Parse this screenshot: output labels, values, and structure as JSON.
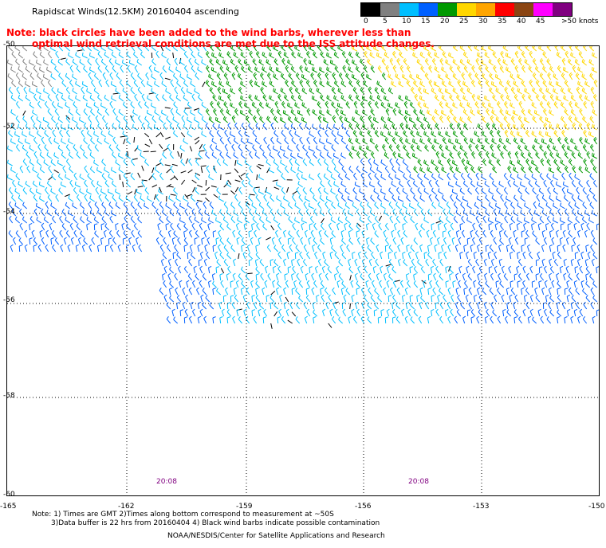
{
  "title": "Rapidscat Winds(12.5KM) 20160404 ascending",
  "note": {
    "line1": "Note: black circles have been added to the wind barbs, wherever less than",
    "line2": "optimal wind retrieval conditions are met due to the ISS attitude changes."
  },
  "colorbar": {
    "labels": [
      "0",
      "5",
      "10",
      "15",
      "20",
      "25",
      "30",
      "35",
      "40",
      "45",
      ">50 knots"
    ],
    "colors": [
      "#000000",
      "#808080",
      "#00bfff",
      "#0060ff",
      "#009900",
      "#ffd700",
      "#ffa500",
      "#ff0000",
      "#8b4513",
      "#ff00ff",
      "#800080"
    ]
  },
  "map": {
    "lat_labels": [
      "-50",
      "-52",
      "-54",
      "-56",
      "-58",
      "-60"
    ],
    "lon_labels": [
      "-165",
      "-162",
      "-159",
      "-156",
      "-153",
      "-150"
    ],
    "time_labels": [
      "20:08",
      "20:08"
    ]
  },
  "footer": {
    "line1": "Note: 1) Times are GMT 2)Times along bottom correspond to measurement at ~50S",
    "line2": "3)Data buffer is 22 hrs from 20160404 4) Black wind barbs indicate possible contamination",
    "credit": "NOAA/NESDIS/Center for Satellite Applications and Research"
  }
}
